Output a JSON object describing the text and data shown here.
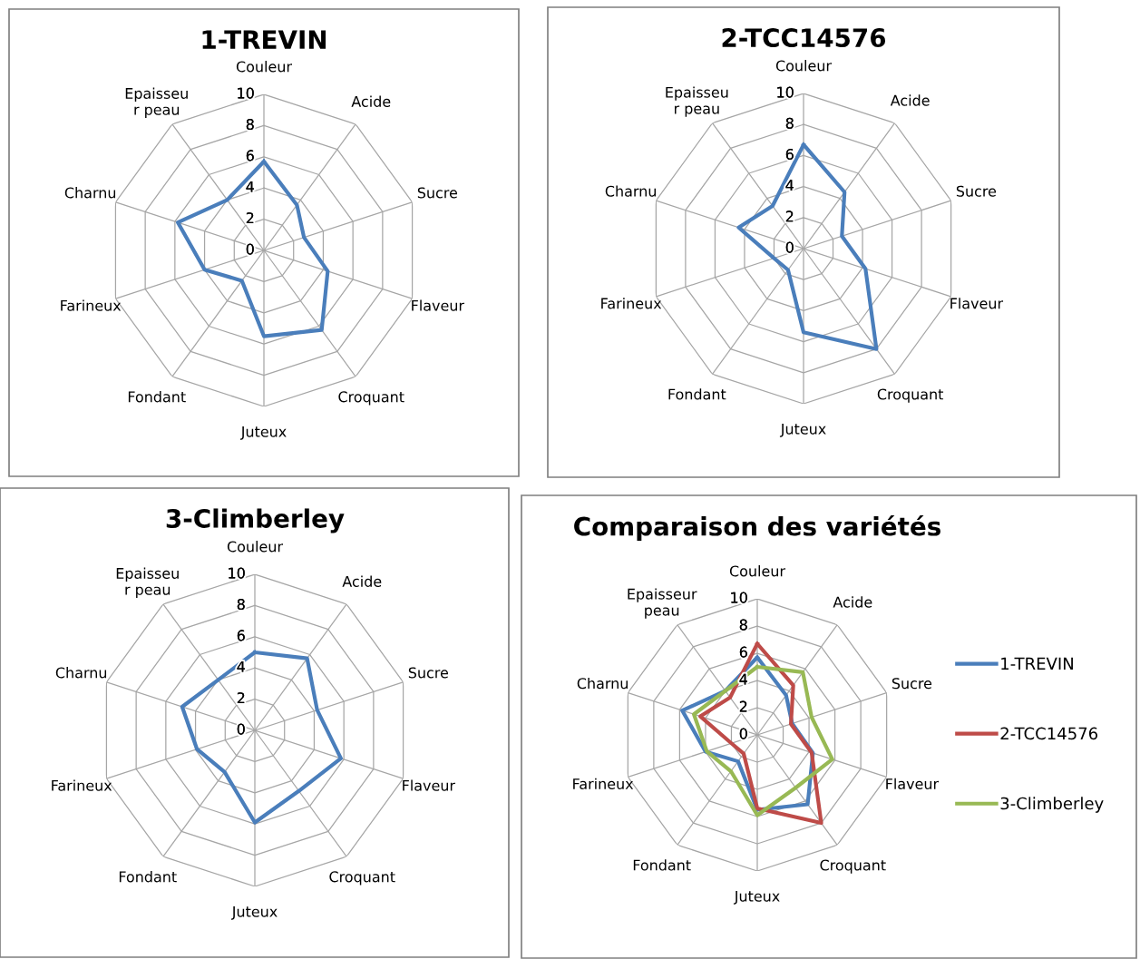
{
  "chart_data": [
    {
      "type": "radar",
      "title": "1-TREVIN",
      "categories": [
        "Couleur",
        "Acide",
        "Sucre",
        "Flaveur",
        "Croquant",
        "Juteux",
        "Fondant",
        "Farineux",
        "Charnu",
        "Epaisseu\nr peau"
      ],
      "ylim": [
        0,
        10
      ],
      "yticks": [
        0,
        2,
        4,
        6,
        8,
        10
      ],
      "grid": true,
      "legend": false,
      "series": [
        {
          "color": "#4a7ebb",
          "values": [
            5.7,
            3.6,
            2.7,
            4.3,
            6.3,
            5.5,
            2.4,
            4.0,
            5.8,
            4.0
          ]
        }
      ]
    },
    {
      "type": "radar",
      "title": "3-Climberley",
      "categories": [
        "Couleur",
        "Acide",
        "Sucre",
        "Flaveur",
        "Croquant",
        "Juteux",
        "Fondant",
        "Farineux",
        "Charnu",
        "Epaisseu\nr peau"
      ],
      "ylim": [
        0,
        10
      ],
      "yticks": [
        0,
        2,
        4,
        6,
        8,
        10
      ],
      "grid": true,
      "legend": false,
      "series": [
        {
          "color": "#4a7ebb",
          "values": [
            5.0,
            5.7,
            4.2,
            5.8,
            4.8,
            5.9,
            3.3,
            3.9,
            4.9,
            4.0
          ]
        }
      ]
    },
    {
      "type": "radar",
      "title": "2-TCC14576",
      "categories": [
        "Couleur",
        "Acide",
        "Sucre",
        "Flaveur",
        "Croquant",
        "Juteux",
        "Fondant",
        "Farineux",
        "Charnu",
        "Epaisseu\nr peau"
      ],
      "ylim": [
        0,
        10
      ],
      "yticks": [
        0,
        2,
        4,
        6,
        8,
        10
      ],
      "grid": true,
      "legend": false,
      "series": [
        {
          "color": "#4a7ebb",
          "values": [
            6.7,
            4.5,
            2.6,
            4.2,
            8.0,
            5.4,
            1.7,
            2.0,
            4.4,
            3.4
          ]
        }
      ]
    },
    {
      "type": "radar",
      "title": "Comparaison des variétés",
      "categories": [
        "Couleur",
        "Acide",
        "Sucre",
        "Flaveur",
        "Croquant",
        "Juteux",
        "Fondant",
        "Farineux",
        "Charnu",
        "Epaisseur\npeau"
      ],
      "ylim": [
        0,
        10
      ],
      "yticks": [
        0,
        2,
        4,
        6,
        8,
        10
      ],
      "grid": true,
      "legend": "right",
      "series": [
        {
          "name": "1-TREVIN",
          "color": "#4a7ebb",
          "values": [
            5.7,
            3.6,
            2.7,
            4.3,
            6.3,
            5.5,
            2.4,
            4.0,
            5.8,
            4.0
          ]
        },
        {
          "name": "2-TCC14576",
          "color": "#be4b48",
          "values": [
            6.7,
            4.5,
            2.6,
            4.2,
            8.0,
            5.4,
            1.7,
            2.0,
            4.4,
            3.4
          ]
        },
        {
          "name": "3-Climberley",
          "color": "#98b954",
          "values": [
            5.0,
            5.7,
            4.2,
            5.8,
            4.8,
            5.9,
            3.3,
            3.9,
            4.9,
            4.0
          ]
        }
      ]
    }
  ]
}
